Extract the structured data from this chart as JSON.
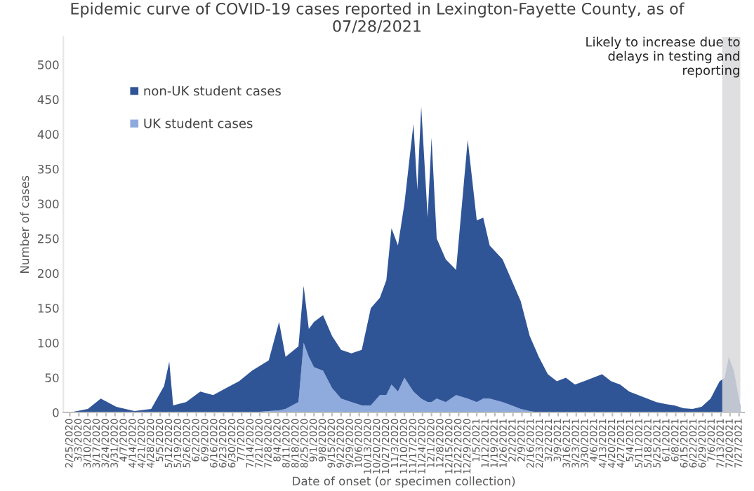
{
  "chart_data": {
    "type": "area",
    "stacked": true,
    "title": "Epidemic curve of COVID-19 cases reported in Lexington-Fayette County, as of\n07/28/2021",
    "xlabel": "Date of onset (or specimen collection)",
    "ylabel": "Number of cases",
    "x": [
      "2020-02-25",
      "2020-03-10",
      "2020-03-20",
      "2020-04-01",
      "2020-04-15",
      "2020-04-28",
      "2020-05-08",
      "2020-05-12",
      "2020-05-15",
      "2020-05-25",
      "2020-06-05",
      "2020-06-15",
      "2020-06-25",
      "2020-07-05",
      "2020-07-15",
      "2020-07-28",
      "2020-08-05",
      "2020-08-10",
      "2020-08-20",
      "2020-08-24",
      "2020-08-28",
      "2020-09-01",
      "2020-09-08",
      "2020-09-15",
      "2020-09-22",
      "2020-09-30",
      "2020-10-08",
      "2020-10-15",
      "2020-10-22",
      "2020-10-27",
      "2020-10-31",
      "2020-11-05",
      "2020-11-10",
      "2020-11-17",
      "2020-11-20",
      "2020-11-23",
      "2020-11-28",
      "2020-12-01",
      "2020-12-05",
      "2020-12-12",
      "2020-12-20",
      "2020-12-29",
      "2021-01-05",
      "2021-01-10",
      "2021-01-15",
      "2021-01-25",
      "2021-02-01",
      "2021-02-08",
      "2021-02-15",
      "2021-02-22",
      "2021-03-01",
      "2021-03-08",
      "2021-03-15",
      "2021-03-22",
      "2021-03-29",
      "2021-04-05",
      "2021-04-12",
      "2021-04-19",
      "2021-04-26",
      "2021-05-03",
      "2021-05-10",
      "2021-05-17",
      "2021-05-24",
      "2021-05-31",
      "2021-06-07",
      "2021-06-14",
      "2021-06-21",
      "2021-06-28",
      "2021-07-05",
      "2021-07-12",
      "2021-07-16",
      "2021-07-19",
      "2021-07-23",
      "2021-07-28"
    ],
    "series": [
      {
        "name": "UK student cases",
        "color": "#8faadc",
        "values": [
          0,
          0,
          0,
          0,
          0,
          0,
          0,
          0,
          0,
          0,
          0,
          0,
          0,
          0,
          0,
          2,
          3,
          5,
          15,
          100,
          80,
          65,
          60,
          35,
          20,
          15,
          10,
          10,
          25,
          25,
          40,
          30,
          50,
          30,
          25,
          20,
          15,
          15,
          20,
          15,
          25,
          20,
          15,
          20,
          20,
          15,
          10,
          5,
          2,
          0,
          0,
          0,
          0,
          0,
          0,
          0,
          0,
          0,
          0,
          0,
          0,
          0,
          0,
          0,
          0,
          0,
          0,
          0,
          0,
          0,
          0,
          0,
          0,
          0
        ]
      },
      {
        "name": "non-UK student cases",
        "color": "#2f5597",
        "values": [
          0,
          5,
          20,
          8,
          2,
          5,
          38,
          73,
          10,
          15,
          30,
          25,
          35,
          45,
          60,
          73,
          127,
          75,
          80,
          82,
          40,
          65,
          80,
          75,
          70,
          70,
          80,
          140,
          140,
          165,
          225,
          210,
          250,
          385,
          295,
          420,
          265,
          380,
          230,
          205,
          180,
          372,
          261,
          260,
          220,
          205,
          180,
          155,
          108,
          80,
          55,
          45,
          50,
          40,
          45,
          50,
          55,
          45,
          40,
          30,
          25,
          20,
          15,
          12,
          10,
          6,
          5,
          8,
          20,
          45,
          50,
          80,
          60,
          10
        ]
      }
    ],
    "xlim": [
      "2020-02-20",
      "2021-07-31"
    ],
    "xticks": [
      {
        "value": "2020-02-25",
        "label": "2/25/2020"
      },
      {
        "value": "2020-03-03",
        "label": "3/3/2020"
      },
      {
        "value": "2020-03-10",
        "label": "3/10/2020"
      },
      {
        "value": "2020-03-17",
        "label": "3/17/2020"
      },
      {
        "value": "2020-03-24",
        "label": "3/24/2020"
      },
      {
        "value": "2020-03-31",
        "label": "3/31/2020"
      },
      {
        "value": "2020-04-07",
        "label": "4/7/2020"
      },
      {
        "value": "2020-04-14",
        "label": "4/14/2020"
      },
      {
        "value": "2020-04-21",
        "label": "4/21/2020"
      },
      {
        "value": "2020-04-28",
        "label": "4/28/2020"
      },
      {
        "value": "2020-05-05",
        "label": "5/5/2020"
      },
      {
        "value": "2020-05-12",
        "label": "5/12/2020"
      },
      {
        "value": "2020-05-19",
        "label": "5/19/2020"
      },
      {
        "value": "2020-05-26",
        "label": "5/26/2020"
      },
      {
        "value": "2020-06-02",
        "label": "6/2/2020"
      },
      {
        "value": "2020-06-09",
        "label": "6/9/2020"
      },
      {
        "value": "2020-06-16",
        "label": "6/16/2020"
      },
      {
        "value": "2020-06-23",
        "label": "6/23/2020"
      },
      {
        "value": "2020-06-30",
        "label": "6/30/2020"
      },
      {
        "value": "2020-07-07",
        "label": "7/7/2020"
      },
      {
        "value": "2020-07-14",
        "label": "7/14/2020"
      },
      {
        "value": "2020-07-21",
        "label": "7/21/2020"
      },
      {
        "value": "2020-07-28",
        "label": "7/28/2020"
      },
      {
        "value": "2020-08-04",
        "label": "8/4/2020"
      },
      {
        "value": "2020-08-11",
        "label": "8/11/2020"
      },
      {
        "value": "2020-08-18",
        "label": "8/18/2020"
      },
      {
        "value": "2020-08-25",
        "label": "8/25/2020"
      },
      {
        "value": "2020-09-01",
        "label": "9/1/2020"
      },
      {
        "value": "2020-09-08",
        "label": "9/8/2020"
      },
      {
        "value": "2020-09-15",
        "label": "9/15/2020"
      },
      {
        "value": "2020-09-22",
        "label": "9/22/2020"
      },
      {
        "value": "2020-09-29",
        "label": "9/29/2020"
      },
      {
        "value": "2020-10-06",
        "label": "10/6/2020"
      },
      {
        "value": "2020-10-13",
        "label": "10/13/2020"
      },
      {
        "value": "2020-10-20",
        "label": "10/20/2020"
      },
      {
        "value": "2020-10-27",
        "label": "10/27/2020"
      },
      {
        "value": "2020-11-03",
        "label": "11/3/2020"
      },
      {
        "value": "2020-11-10",
        "label": "11/10/2020"
      },
      {
        "value": "2020-11-17",
        "label": "11/17/2020"
      },
      {
        "value": "2020-11-24",
        "label": "11/24/2020"
      },
      {
        "value": "2020-12-01",
        "label": "12/1/2020"
      },
      {
        "value": "2020-12-08",
        "label": "12/8/2020"
      },
      {
        "value": "2020-12-15",
        "label": "12/15/2020"
      },
      {
        "value": "2020-12-22",
        "label": "12/22/2020"
      },
      {
        "value": "2020-12-29",
        "label": "12/29/2020"
      },
      {
        "value": "2021-01-05",
        "label": "1/5/2021"
      },
      {
        "value": "2021-01-12",
        "label": "1/12/2021"
      },
      {
        "value": "2021-01-19",
        "label": "1/19/2021"
      },
      {
        "value": "2021-01-26",
        "label": "1/26/2021"
      },
      {
        "value": "2021-02-02",
        "label": "2/2/2021"
      },
      {
        "value": "2021-02-09",
        "label": "2/9/2021"
      },
      {
        "value": "2021-02-16",
        "label": "2/16/2021"
      },
      {
        "value": "2021-02-23",
        "label": "2/23/2021"
      },
      {
        "value": "2021-03-02",
        "label": "3/2/2021"
      },
      {
        "value": "2021-03-09",
        "label": "3/9/2021"
      },
      {
        "value": "2021-03-16",
        "label": "3/16/2021"
      },
      {
        "value": "2021-03-23",
        "label": "3/23/2021"
      },
      {
        "value": "2021-03-30",
        "label": "3/30/2021"
      },
      {
        "value": "2021-04-06",
        "label": "4/6/2021"
      },
      {
        "value": "2021-04-13",
        "label": "4/13/2021"
      },
      {
        "value": "2021-04-20",
        "label": "4/20/2021"
      },
      {
        "value": "2021-04-27",
        "label": "4/27/2021"
      },
      {
        "value": "2021-05-04",
        "label": "5/4/2021"
      },
      {
        "value": "2021-05-11",
        "label": "5/11/2021"
      },
      {
        "value": "2021-05-18",
        "label": "5/18/2021"
      },
      {
        "value": "2021-05-25",
        "label": "5/25/2021"
      },
      {
        "value": "2021-06-01",
        "label": "6/1/2021"
      },
      {
        "value": "2021-06-08",
        "label": "6/8/2021"
      },
      {
        "value": "2021-06-15",
        "label": "6/15/2021"
      },
      {
        "value": "2021-06-22",
        "label": "6/22/2021"
      },
      {
        "value": "2021-06-29",
        "label": "6/29/2021"
      },
      {
        "value": "2021-07-06",
        "label": "7/6/2021"
      },
      {
        "value": "2021-07-13",
        "label": "7/13/2021"
      },
      {
        "value": "2021-07-20",
        "label": "7/20/2021"
      },
      {
        "value": "2021-07-27",
        "label": "7/27/2021"
      }
    ],
    "ylim": [
      0,
      540
    ],
    "yticks": [
      0,
      50,
      100,
      150,
      200,
      250,
      300,
      350,
      400,
      450,
      500
    ],
    "bands": [
      {
        "axis": "x",
        "from": "2021-07-14",
        "to": "2021-07-28",
        "label": "Likely to increase due to\ndelays in testing and\nreporting",
        "color": "#d9d9dc"
      }
    ],
    "legend": "top left",
    "grid": false
  }
}
